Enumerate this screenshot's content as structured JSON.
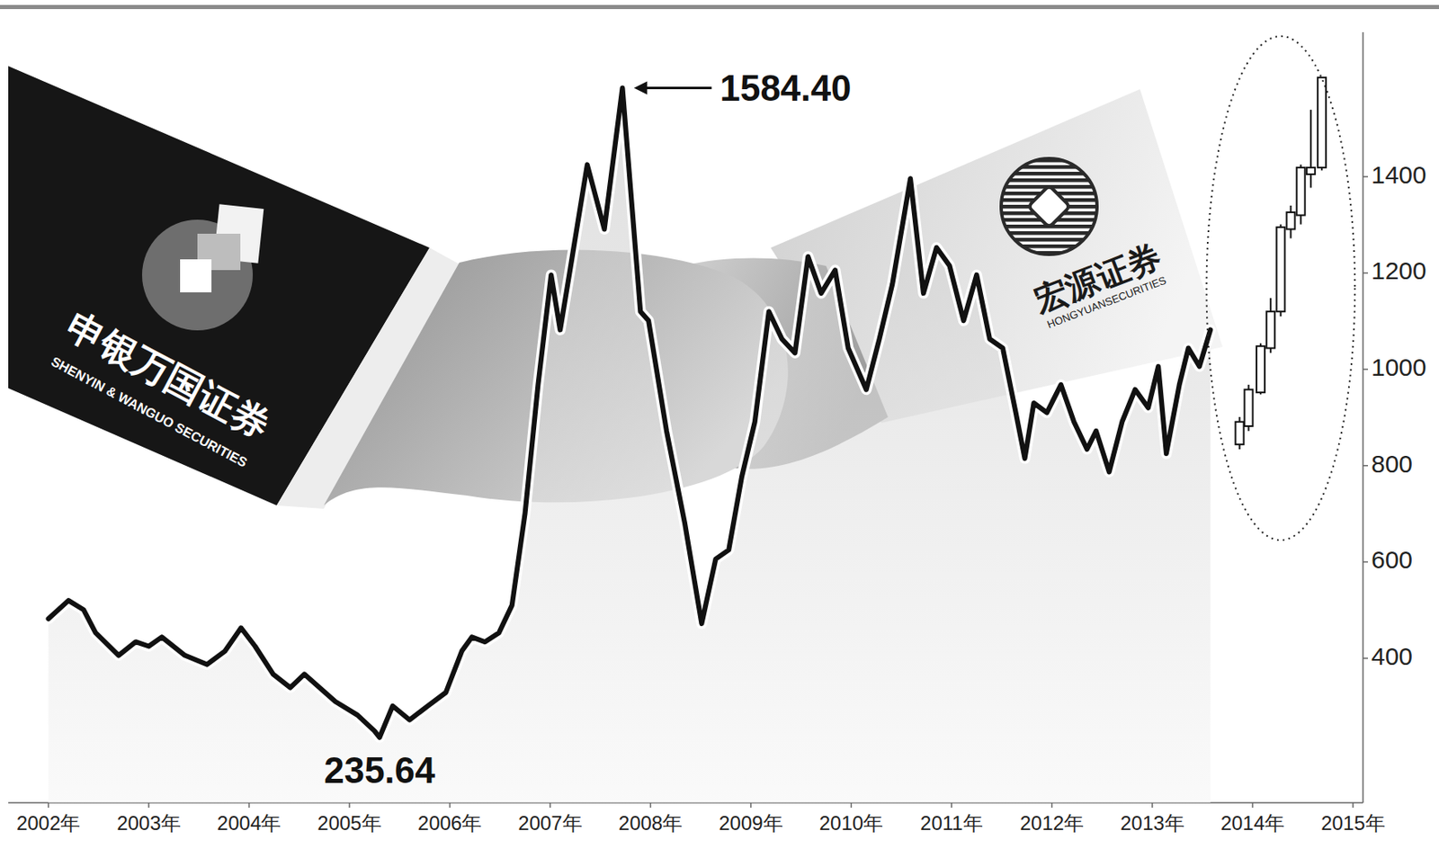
{
  "chart_data": {
    "type": "line",
    "xlim": [
      2001.6,
      2015.1
    ],
    "ylim": [
      100,
      1700
    ],
    "xticks": [
      {
        "value": 2002,
        "label": "2002年"
      },
      {
        "value": 2003,
        "label": "2003年"
      },
      {
        "value": 2004,
        "label": "2004年"
      },
      {
        "value": 2005,
        "label": "2005年"
      },
      {
        "value": 2006,
        "label": "2006年"
      },
      {
        "value": 2007,
        "label": "2007年"
      },
      {
        "value": 2008,
        "label": "2008年"
      },
      {
        "value": 2009,
        "label": "2009年"
      },
      {
        "value": 2010,
        "label": "2010年"
      },
      {
        "value": 2011,
        "label": "2011年"
      },
      {
        "value": 2012,
        "label": "2012年"
      },
      {
        "value": 2013,
        "label": "2013年"
      },
      {
        "value": 2014,
        "label": "2014年"
      },
      {
        "value": 2015,
        "label": "2015年"
      }
    ],
    "yticks": [
      400,
      600,
      800,
      1000,
      1200,
      1400
    ],
    "grid": false,
    "series": [
      {
        "type": "line",
        "color": "#111111",
        "x": [
          2002.0,
          2002.2,
          2002.35,
          2002.47,
          2002.7,
          2002.87,
          2003.0,
          2003.13,
          2003.36,
          2003.58,
          2003.76,
          2003.92,
          2004.06,
          2004.24,
          2004.41,
          2004.55,
          2004.68,
          2004.86,
          2005.08,
          2005.25,
          2005.3,
          2005.43,
          2005.6,
          2005.78,
          2005.96,
          2006.12,
          2006.22,
          2006.35,
          2006.49,
          2006.62,
          2006.75,
          2006.88,
          2007.01,
          2007.1,
          2007.19,
          2007.37,
          2007.54,
          2007.72,
          2007.9,
          2007.98,
          2008.16,
          2008.34,
          2008.51,
          2008.65,
          2008.78,
          2008.91,
          2009.04,
          2009.18,
          2009.31,
          2009.44,
          2009.57,
          2009.7,
          2009.84,
          2009.97,
          2010.15,
          2010.28,
          2010.41,
          2010.59,
          2010.72,
          2010.85,
          2010.98,
          2011.12,
          2011.25,
          2011.38,
          2011.51,
          2011.64,
          2011.73,
          2011.82,
          2011.95,
          2012.09,
          2012.22,
          2012.35,
          2012.44,
          2012.57,
          2012.7,
          2012.83,
          2012.96,
          2013.06,
          2013.14,
          2013.27,
          2013.36,
          2013.47,
          2013.58
        ],
        "values": [
          482,
          520,
          501,
          453,
          406,
          434,
          425,
          444,
          406,
          387,
          415,
          463,
          425,
          367,
          339,
          367,
          343,
          310,
          282,
          249,
          235.64,
          301,
          272,
          301,
          329,
          415,
          444,
          434,
          453,
          510,
          701,
          968,
          1196,
          1082,
          1196,
          1425,
          1291,
          1584.4,
          1120,
          1101,
          872,
          682,
          472,
          606,
          625,
          777,
          891,
          1120,
          1063,
          1034,
          1234,
          1158,
          1206,
          1044,
          958,
          1063,
          1177,
          1396,
          1158,
          1253,
          1215,
          1101,
          1196,
          1063,
          1044,
          910,
          815,
          930,
          910,
          968,
          891,
          834,
          872,
          787,
          891,
          958,
          920,
          1006,
          825,
          968,
          1044,
          1006,
          1082
        ]
      },
      {
        "type": "candlestick",
        "color": "#111111",
        "x": [
          2013.87,
          2013.96,
          2014.08,
          2014.18,
          2014.28,
          2014.38,
          2014.48,
          2014.58,
          2014.69
        ],
        "open": [
          844,
          882,
          952,
          1044,
          1120,
          1291,
          1320,
          1405,
          1419
        ],
        "high": [
          901,
          968,
          1054,
          1148,
          1301,
          1340,
          1425,
          1539,
          1606
        ],
        "low": [
          834,
          872,
          948,
          1034,
          1110,
          1272,
          1301,
          1377,
          1413
        ],
        "close": [
          891,
          958,
          1048,
          1120,
          1295,
          1326,
          1419,
          1419,
          1606
        ]
      }
    ],
    "annotations": [
      {
        "text": "1584.40",
        "x": 2007.72,
        "y": 1584.4
      },
      {
        "text": "235.64",
        "x": 2005.3,
        "y": 235.64
      }
    ],
    "logos": [
      {
        "name": "申银万国证券",
        "subtitle": "SHENYIN & WANGUO SECURITIES"
      },
      {
        "name": "宏源证券",
        "subtitle": "HONGYUANSECURITIES"
      }
    ]
  }
}
